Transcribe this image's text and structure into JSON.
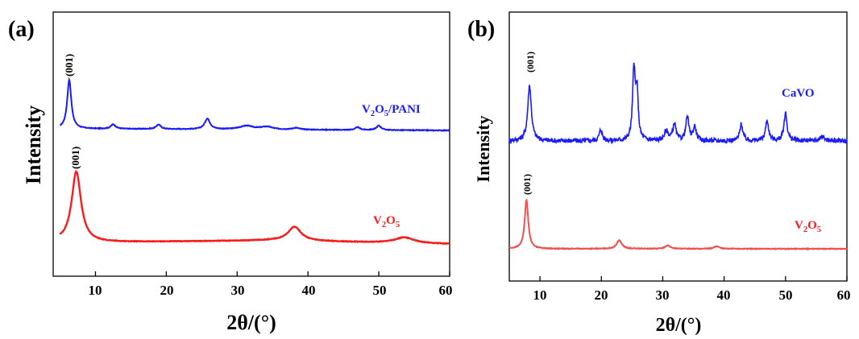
{
  "panels": [
    {
      "label": "(a)",
      "ylabel": "Intensity",
      "xlabel": "2θ/(°)",
      "xticks": [
        "10",
        "20",
        "30",
        "40",
        "50",
        "60"
      ]
    },
    {
      "label": "(b)",
      "ylabel": "Intensity",
      "xlabel": "2θ/(°)",
      "xticks": [
        "10",
        "20",
        "30",
        "40",
        "50",
        "60"
      ]
    }
  ],
  "annotations": {
    "peak_001": "(001)",
    "v2o5_pani": {
      "v": "V",
      "n2": "2",
      "o": "O",
      "n5": "5",
      "rest": "/PANI"
    },
    "v2o5": {
      "v": "V",
      "n2": "2",
      "o": "O",
      "n5": "5"
    },
    "cavo": "CaVO"
  },
  "chart_data": [
    {
      "type": "line",
      "xlabel": "2θ/(°)",
      "ylabel": "Intensity",
      "xlim": [
        5,
        60
      ],
      "y_ticks_shown": false,
      "series": [
        {
          "name": "V2O5/PANI",
          "color": "#1a1aff",
          "noise": 0.004,
          "baseline": [
            [
              5,
              0.02
            ],
            [
              60,
              0.0
            ]
          ],
          "peaks": [
            {
              "x": 6.3,
              "h": 0.55,
              "w": 0.35
            },
            {
              "x": 12.5,
              "h": 0.05,
              "w": 0.4
            },
            {
              "x": 18.9,
              "h": 0.05,
              "w": 0.4
            },
            {
              "x": 25.8,
              "h": 0.12,
              "w": 0.45
            },
            {
              "x": 31.3,
              "h": 0.04,
              "w": 1.2
            },
            {
              "x": 34.2,
              "h": 0.03,
              "w": 1.0
            },
            {
              "x": 38.3,
              "h": 0.02,
              "w": 0.6
            },
            {
              "x": 47.0,
              "h": 0.03,
              "w": 0.4
            },
            {
              "x": 50.0,
              "h": 0.05,
              "w": 0.4
            }
          ]
        },
        {
          "name": "V2O5",
          "color": "#ff1a1a",
          "noise": 0.004,
          "baseline": [
            [
              5,
              0.03
            ],
            [
              8,
              0.02
            ],
            [
              35,
              0.05
            ],
            [
              60,
              0.0
            ]
          ],
          "peaks": [
            {
              "x": 7.3,
              "h": 1.0,
              "w": 0.8
            },
            {
              "x": 38.1,
              "h": 0.2,
              "w": 1.1
            },
            {
              "x": 53.6,
              "h": 0.08,
              "w": 1.6
            }
          ]
        }
      ],
      "peak_label": {
        "text": "(001)",
        "series": [
          "V2O5/PANI",
          "V2O5"
        ]
      }
    },
    {
      "type": "line",
      "xlabel": "2θ/(°)",
      "ylabel": "Intensity",
      "xlim": [
        5,
        60
      ],
      "y_ticks_shown": false,
      "series": [
        {
          "name": "CaVO",
          "color": "#1a1aff",
          "noise": 0.025,
          "baseline": [
            [
              5,
              0.0
            ],
            [
              60,
              0.0
            ]
          ],
          "peaks": [
            {
              "x": 8.3,
              "h": 0.6,
              "w": 0.35
            },
            {
              "x": 19.9,
              "h": 0.12,
              "w": 0.3
            },
            {
              "x": 25.3,
              "h": 0.75,
              "w": 0.25
            },
            {
              "x": 25.8,
              "h": 0.5,
              "w": 0.25
            },
            {
              "x": 30.6,
              "h": 0.1,
              "w": 0.4
            },
            {
              "x": 31.9,
              "h": 0.18,
              "w": 0.3
            },
            {
              "x": 34.0,
              "h": 0.25,
              "w": 0.3
            },
            {
              "x": 35.2,
              "h": 0.15,
              "w": 0.3
            },
            {
              "x": 42.8,
              "h": 0.18,
              "w": 0.3
            },
            {
              "x": 47.0,
              "h": 0.22,
              "w": 0.3
            },
            {
              "x": 50.0,
              "h": 0.3,
              "w": 0.3
            },
            {
              "x": 56.0,
              "h": 0.05,
              "w": 0.4
            }
          ]
        },
        {
          "name": "V2O5",
          "color": "#f05050",
          "noise": 0.004,
          "baseline": [
            [
              5,
              0.0
            ],
            [
              60,
              0.0
            ]
          ],
          "peaks": [
            {
              "x": 7.8,
              "h": 0.58,
              "w": 0.35
            },
            {
              "x": 22.9,
              "h": 0.1,
              "w": 0.5
            },
            {
              "x": 30.8,
              "h": 0.04,
              "w": 0.5
            },
            {
              "x": 38.8,
              "h": 0.03,
              "w": 0.5
            }
          ]
        }
      ],
      "peak_label": {
        "text": "(001)",
        "series": [
          "CaVO",
          "V2O5"
        ]
      }
    }
  ]
}
